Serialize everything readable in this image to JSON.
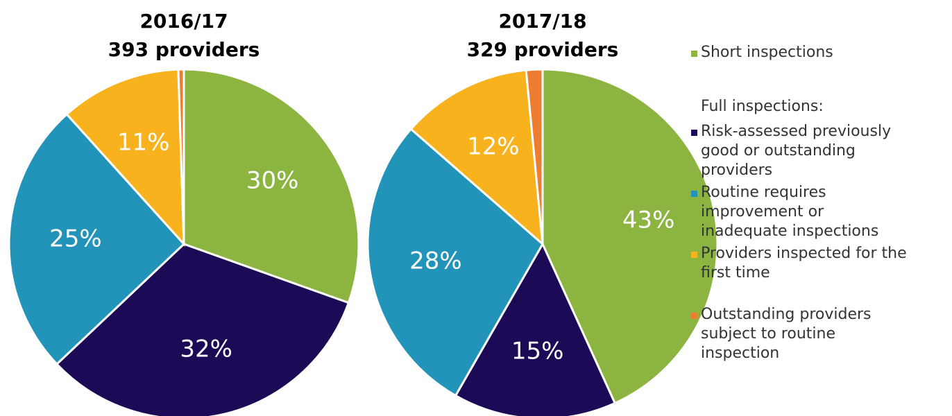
{
  "chart_data": [
    {
      "type": "pie",
      "title": "2016/17",
      "subtitle": "393 providers",
      "categories": [
        "Short inspections",
        "Risk-assessed previously good or outstanding providers",
        "Routine requires improvement or inadequate inspections",
        "Providers inspected for the first time",
        "Outstanding providers subject to routine inspection"
      ],
      "values": [
        30,
        32,
        25,
        11,
        0.5
      ],
      "value_labels": [
        "30%",
        "32%",
        "25%",
        "11%",
        null
      ],
      "colors": [
        "#8cb440",
        "#1c0a57",
        "#2394b9",
        "#f7b21d",
        "#ed7d31"
      ]
    },
    {
      "type": "pie",
      "title": "2017/18",
      "subtitle": "329 providers",
      "categories": [
        "Short inspections",
        "Risk-assessed previously good or outstanding providers",
        "Routine requires improvement or inadequate inspections",
        "Providers inspected for the first time",
        "Outstanding providers subject to routine inspection"
      ],
      "values": [
        43,
        15,
        28,
        12,
        1.5
      ],
      "value_labels": [
        "43%",
        "15%",
        "28%",
        "12%",
        null
      ],
      "colors": [
        "#8cb440",
        "#1c0a57",
        "#2394b9",
        "#f7b21d",
        "#ed7d31"
      ]
    }
  ],
  "legend": {
    "heading": "Full inspections:"
  }
}
